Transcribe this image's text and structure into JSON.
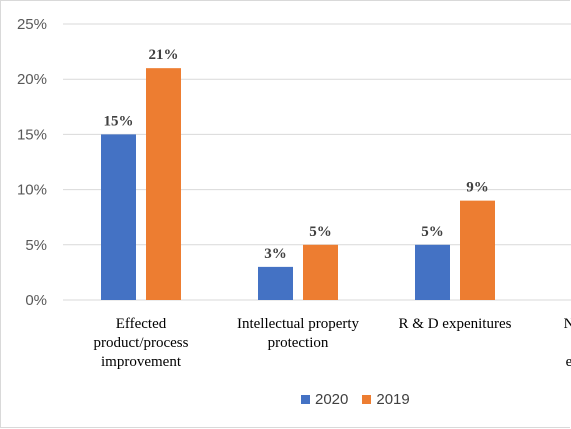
{
  "chart_data": {
    "type": "bar",
    "categories": [
      [
        "Effected",
        "product/process",
        "improvement"
      ],
      [
        "Intellectual property",
        "protection"
      ],
      [
        "R & D expenitures"
      ],
      [
        "N",
        "",
        "e"
      ]
    ],
    "series": [
      {
        "name": "2020",
        "color": "#4472c4",
        "values": [
          15,
          3,
          5,
          null
        ],
        "labels": [
          "15%",
          "3%",
          "5%",
          ""
        ]
      },
      {
        "name": "2019",
        "color": "#ed7d31",
        "values": [
          21,
          5,
          9,
          null
        ],
        "labels": [
          "21%",
          "5%",
          "9%",
          ""
        ]
      }
    ],
    "ylim": [
      0,
      25
    ],
    "yticks": [
      0,
      5,
      10,
      15,
      20,
      25
    ],
    "ytick_labels": [
      "0%",
      "5%",
      "10%",
      "15%",
      "20%",
      "25%"
    ],
    "grid": true,
    "legend_position": "bottom"
  }
}
